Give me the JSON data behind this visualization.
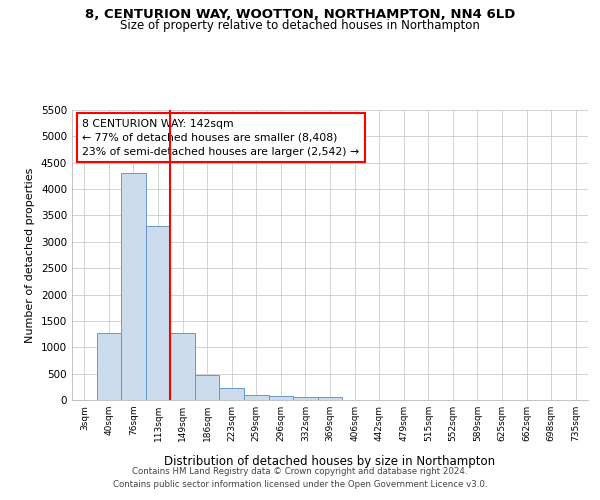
{
  "title1": "8, CENTURION WAY, WOOTTON, NORTHAMPTON, NN4 6LD",
  "title2": "Size of property relative to detached houses in Northampton",
  "xlabel": "Distribution of detached houses by size in Northampton",
  "ylabel": "Number of detached properties",
  "bin_labels": [
    "3sqm",
    "40sqm",
    "76sqm",
    "113sqm",
    "149sqm",
    "186sqm",
    "223sqm",
    "259sqm",
    "296sqm",
    "332sqm",
    "369sqm",
    "406sqm",
    "442sqm",
    "479sqm",
    "515sqm",
    "552sqm",
    "589sqm",
    "625sqm",
    "662sqm",
    "698sqm",
    "735sqm"
  ],
  "bar_heights": [
    0,
    1270,
    4300,
    3300,
    1280,
    480,
    220,
    100,
    70,
    60,
    60,
    0,
    0,
    0,
    0,
    0,
    0,
    0,
    0,
    0,
    0
  ],
  "bar_color": "#ccdcec",
  "bar_edge_color": "#6699cc",
  "ylim": [
    0,
    5500
  ],
  "yticks": [
    0,
    500,
    1000,
    1500,
    2000,
    2500,
    3000,
    3500,
    4000,
    4500,
    5000,
    5500
  ],
  "red_line_x": 3.5,
  "annotation_line1": "8 CENTURION WAY: 142sqm",
  "annotation_line2": "← 77% of detached houses are smaller (8,408)",
  "annotation_line3": "23% of semi-detached houses are larger (2,542) →",
  "footer1": "Contains HM Land Registry data © Crown copyright and database right 2024.",
  "footer2": "Contains public sector information licensed under the Open Government Licence v3.0.",
  "background_color": "#ffffff",
  "plot_bg_color": "#ffffff",
  "grid_color": "#cccccc"
}
